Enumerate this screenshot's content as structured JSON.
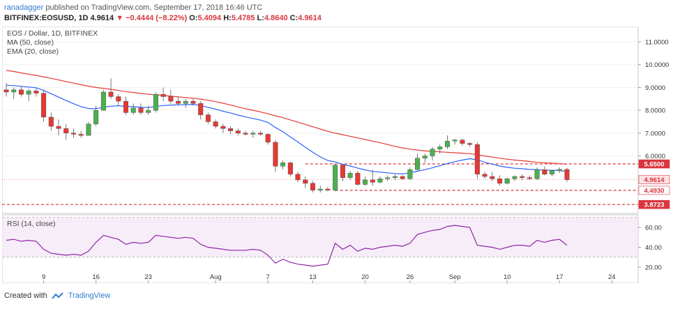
{
  "header": {
    "author": "ranadagger",
    "published": "published on TradingView.com, September 17, 2018 16:46 UTC",
    "symbol": "BITFINEX:EOSUSD, 1D",
    "last": "4.9614",
    "change": "▼ −0.4444 (−8.22%)",
    "open_label": "O:",
    "open": "5.4094",
    "high_label": "H:",
    "high": "5.4785",
    "low_label": "L:",
    "low": "4.8640",
    "close_label": "C:",
    "close": "4.9614"
  },
  "legend": {
    "title": "EOS / Dollar, 1D, BITFINEX",
    "ma": "MA (50, close)",
    "ema": "EMA (20, close)",
    "rsi": "RSI (14, close)"
  },
  "footer": {
    "created_with": "Created with",
    "brand": "TradingView"
  },
  "price_tags": [
    {
      "text": "5.6500",
      "color": "#ffffff",
      "bg": "#d9363e",
      "value": 5.65
    },
    {
      "text": "4.9614",
      "color": "#d9363e",
      "bg": "#fde2e3",
      "value": 4.9614
    },
    {
      "text": "4.4930",
      "color": "#d9363e",
      "bg": "#ffffff",
      "value": 4.493
    },
    {
      "text": "3.8723",
      "color": "#ffffff",
      "bg": "#d9363e",
      "value": 3.8723
    }
  ],
  "chart_data": {
    "type": "candlestick",
    "price_axis_ticks": [
      11.0,
      10.0,
      9.0,
      8.0,
      7.0,
      6.0
    ],
    "rsi_axis_ticks": [
      60.0,
      40.0,
      20.0
    ],
    "x_tick_labels": [
      "9",
      "16",
      "23",
      "Aug",
      "7",
      "13",
      "20",
      "26",
      "Sep",
      "10",
      "17",
      "24"
    ],
    "horizontal_lines": [
      5.65,
      4.493,
      3.8723
    ],
    "colors": {
      "up": "#4caf50",
      "down": "#e53935",
      "ma": "#e53935",
      "ema": "#2962ff",
      "rsi": "#8e24aa"
    },
    "candles": [
      [
        8.9,
        9.2,
        8.6,
        8.8
      ],
      [
        8.8,
        9.0,
        8.5,
        8.9
      ],
      [
        8.9,
        9.05,
        8.6,
        8.7
      ],
      [
        8.7,
        8.95,
        8.4,
        8.85
      ],
      [
        8.85,
        9.0,
        8.6,
        8.75
      ],
      [
        8.75,
        8.9,
        7.5,
        7.7
      ],
      [
        7.7,
        7.9,
        7.1,
        7.3
      ],
      [
        7.3,
        7.6,
        6.9,
        7.2
      ],
      [
        7.2,
        7.4,
        6.7,
        7.0
      ],
      [
        7.0,
        7.2,
        6.8,
        6.95
      ],
      [
        6.95,
        7.1,
        6.8,
        6.9
      ],
      [
        6.9,
        7.5,
        6.9,
        7.4
      ],
      [
        7.4,
        8.2,
        7.3,
        8.0
      ],
      [
        8.0,
        8.9,
        8.0,
        8.8
      ],
      [
        8.8,
        9.4,
        8.5,
        8.6
      ],
      [
        8.6,
        8.7,
        8.2,
        8.4
      ],
      [
        8.4,
        8.6,
        7.8,
        7.9
      ],
      [
        7.9,
        8.3,
        7.8,
        8.1
      ],
      [
        8.1,
        8.3,
        7.8,
        7.9
      ],
      [
        7.9,
        8.2,
        7.8,
        8.0
      ],
      [
        8.0,
        8.8,
        7.9,
        8.7
      ],
      [
        8.7,
        9.0,
        8.4,
        8.6
      ],
      [
        8.6,
        8.9,
        8.3,
        8.4
      ],
      [
        8.4,
        8.6,
        8.2,
        8.3
      ],
      [
        8.3,
        8.5,
        8.1,
        8.4
      ],
      [
        8.4,
        8.5,
        8.2,
        8.3
      ],
      [
        8.3,
        8.4,
        7.6,
        7.8
      ],
      [
        7.8,
        7.9,
        7.4,
        7.5
      ],
      [
        7.5,
        7.6,
        7.2,
        7.3
      ],
      [
        7.3,
        7.4,
        7.0,
        7.2
      ],
      [
        7.2,
        7.3,
        6.95,
        7.1
      ],
      [
        7.1,
        7.2,
        6.9,
        7.0
      ],
      [
        7.0,
        7.1,
        6.9,
        6.95
      ],
      [
        6.95,
        7.1,
        6.8,
        7.0
      ],
      [
        7.0,
        7.1,
        6.9,
        6.95
      ],
      [
        6.95,
        7.0,
        6.5,
        6.6
      ],
      [
        6.6,
        6.7,
        5.3,
        5.55
      ],
      [
        5.55,
        5.8,
        5.4,
        5.7
      ],
      [
        5.7,
        5.75,
        5.1,
        5.2
      ],
      [
        5.2,
        5.3,
        4.85,
        4.95
      ],
      [
        4.95,
        5.1,
        4.6,
        4.8
      ],
      [
        4.8,
        4.9,
        4.4,
        4.5
      ],
      [
        4.5,
        4.7,
        4.4,
        4.55
      ],
      [
        4.55,
        4.65,
        4.45,
        4.5
      ],
      [
        4.5,
        5.65,
        4.45,
        5.6
      ],
      [
        5.6,
        5.65,
        4.9,
        5.05
      ],
      [
        5.05,
        5.35,
        4.95,
        5.25
      ],
      [
        5.25,
        5.35,
        4.7,
        4.75
      ],
      [
        4.75,
        5.1,
        4.7,
        4.95
      ],
      [
        4.95,
        5.4,
        4.7,
        4.85
      ],
      [
        4.85,
        5.1,
        4.8,
        5.0
      ],
      [
        5.0,
        5.15,
        4.9,
        5.05
      ],
      [
        5.05,
        5.2,
        4.95,
        5.1
      ],
      [
        5.1,
        5.15,
        4.95,
        5.0
      ],
      [
        5.0,
        5.5,
        4.95,
        5.4
      ],
      [
        5.4,
        6.1,
        5.35,
        5.9
      ],
      [
        5.9,
        6.1,
        5.7,
        6.0
      ],
      [
        6.0,
        6.4,
        5.8,
        6.3
      ],
      [
        6.3,
        6.5,
        6.1,
        6.4
      ],
      [
        6.4,
        6.9,
        6.3,
        6.65
      ],
      [
        6.65,
        6.75,
        6.5,
        6.7
      ],
      [
        6.7,
        6.75,
        6.45,
        6.55
      ],
      [
        6.55,
        6.6,
        6.4,
        6.5
      ],
      [
        6.5,
        6.6,
        5.0,
        5.2
      ],
      [
        5.2,
        5.3,
        5.0,
        5.1
      ],
      [
        5.1,
        5.3,
        4.9,
        5.0
      ],
      [
        5.0,
        5.15,
        4.7,
        4.8
      ],
      [
        4.8,
        5.05,
        4.75,
        5.0
      ],
      [
        5.0,
        5.15,
        4.9,
        5.1
      ],
      [
        5.1,
        5.2,
        4.95,
        5.05
      ],
      [
        5.05,
        5.15,
        4.95,
        5.0
      ],
      [
        5.0,
        5.5,
        4.95,
        5.4
      ],
      [
        5.4,
        5.55,
        5.15,
        5.2
      ],
      [
        5.2,
        5.4,
        5.1,
        5.35
      ],
      [
        5.35,
        5.5,
        5.25,
        5.41
      ],
      [
        5.41,
        5.48,
        4.86,
        4.96
      ]
    ],
    "ma50": [
      9.75,
      9.7,
      9.64,
      9.58,
      9.53,
      9.47,
      9.4,
      9.33,
      9.26,
      9.19,
      9.12,
      9.06,
      9.0,
      8.96,
      8.92,
      8.87,
      8.82,
      8.78,
      8.74,
      8.7,
      8.68,
      8.65,
      8.62,
      8.59,
      8.56,
      8.53,
      8.49,
      8.44,
      8.38,
      8.31,
      8.23,
      8.15,
      8.07,
      8.0,
      7.93,
      7.85,
      7.76,
      7.68,
      7.58,
      7.48,
      7.38,
      7.28,
      7.18,
      7.08,
      7.0,
      6.93,
      6.86,
      6.79,
      6.72,
      6.65,
      6.58,
      6.5,
      6.42,
      6.35,
      6.3,
      6.26,
      6.22,
      6.2,
      6.18,
      6.16,
      6.14,
      6.12,
      6.1,
      6.05,
      6.0,
      5.95,
      5.9,
      5.86,
      5.82,
      5.79,
      5.76,
      5.72,
      5.7,
      5.68,
      5.66,
      5.64
    ],
    "ema20": [
      9.1,
      9.08,
      9.05,
      9.02,
      8.99,
      8.87,
      8.73,
      8.58,
      8.43,
      8.29,
      8.16,
      8.08,
      8.07,
      8.14,
      8.18,
      8.2,
      8.17,
      8.16,
      8.13,
      8.12,
      8.17,
      8.21,
      8.23,
      8.24,
      8.25,
      8.26,
      8.21,
      8.13,
      8.05,
      7.96,
      7.88,
      7.79,
      7.71,
      7.64,
      7.57,
      7.47,
      7.25,
      7.06,
      6.83,
      6.61,
      6.38,
      6.16,
      5.96,
      5.8,
      5.74,
      5.63,
      5.56,
      5.47,
      5.39,
      5.32,
      5.29,
      5.26,
      5.23,
      5.21,
      5.26,
      5.33,
      5.4,
      5.48,
      5.57,
      5.67,
      5.75,
      5.82,
      5.88,
      5.83,
      5.72,
      5.64,
      5.56,
      5.5,
      5.46,
      5.44,
      5.41,
      5.4,
      5.38,
      5.37,
      5.36,
      5.32
    ],
    "rsi": [
      47,
      48,
      46,
      47,
      46,
      38,
      34,
      33,
      32,
      33,
      32,
      36,
      45,
      52,
      50,
      48,
      43,
      45,
      44,
      45,
      52,
      51,
      50,
      49,
      50,
      49,
      43,
      40,
      39,
      38,
      37,
      37,
      37,
      38,
      37,
      32,
      24,
      28,
      25,
      23,
      22,
      21,
      22,
      23,
      44,
      38,
      42,
      36,
      39,
      38,
      40,
      41,
      42,
      41,
      44,
      53,
      55,
      57,
      58,
      61,
      62,
      61,
      60,
      42,
      41,
      40,
      38,
      40,
      42,
      42,
      41,
      47,
      45,
      47,
      48,
      42
    ]
  }
}
